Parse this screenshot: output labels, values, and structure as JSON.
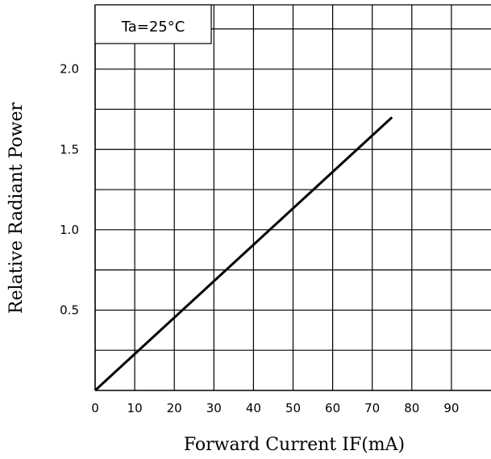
{
  "chart_data": {
    "type": "line",
    "annotation": "Ta=25°C",
    "xlabel": "Forward Current IF(mA)",
    "ylabel": "Relative Radiant Power",
    "xlim": [
      0,
      100
    ],
    "ylim": [
      0,
      2.4
    ],
    "x_ticks": [
      "0",
      "10",
      "20",
      "30",
      "40",
      "50",
      "60",
      "70",
      "80",
      "90"
    ],
    "y_ticks": [
      "0.5",
      "1.0",
      "1.5",
      "2.0"
    ],
    "y_tick_values": [
      0.5,
      1.0,
      1.5,
      2.0
    ],
    "grid": true,
    "series": [
      {
        "x": [
          0,
          75
        ],
        "y": [
          0,
          1.7
        ]
      }
    ]
  }
}
